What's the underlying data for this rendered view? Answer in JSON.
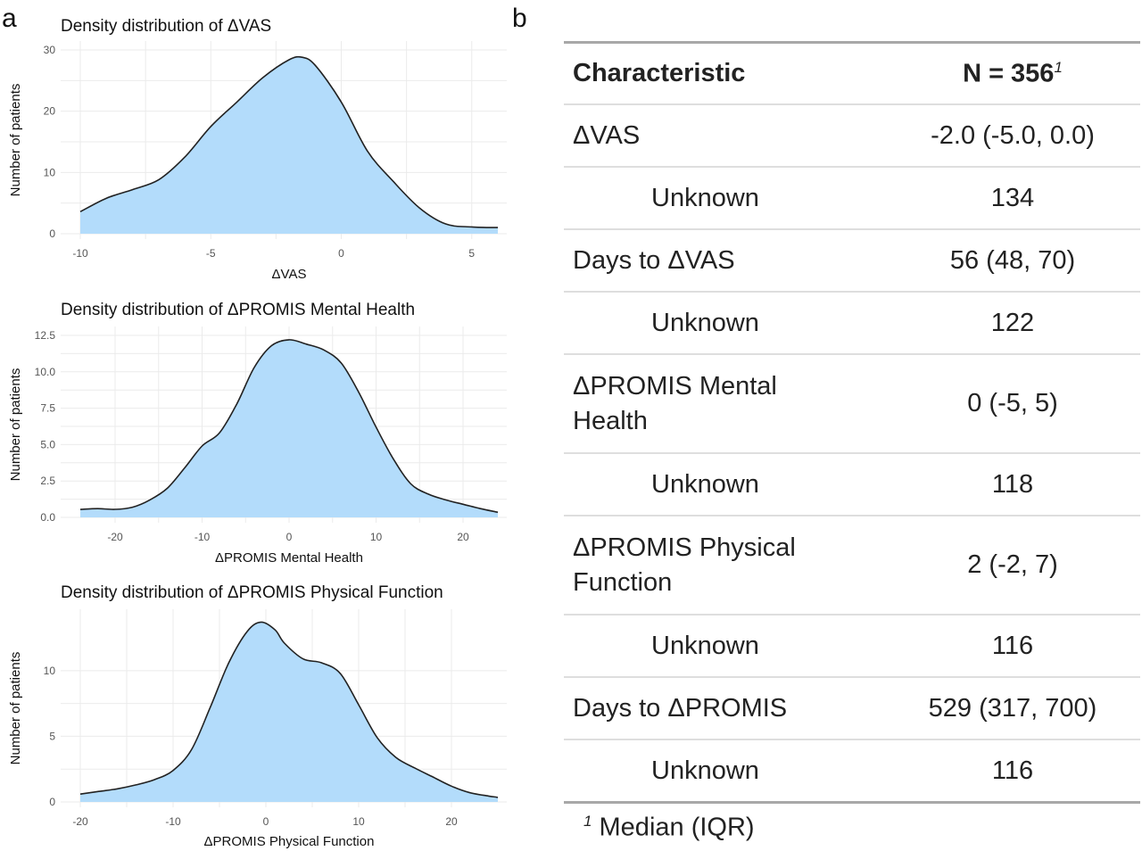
{
  "panels": {
    "a": "a",
    "b": "b"
  },
  "chart_data": [
    {
      "type": "area",
      "title": "Density distribution of ΔVAS",
      "xlabel": "ΔVAS",
      "ylabel": "Number of patients",
      "xlim": [
        -10,
        6
      ],
      "ylim": [
        0,
        30
      ],
      "xticks": [
        -10,
        -5,
        0,
        5
      ],
      "xtick_labels": [
        "-10",
        "-5",
        "0",
        "5"
      ],
      "yticks": [
        0,
        10,
        20,
        30
      ],
      "ytick_labels": [
        "0",
        "10",
        "20",
        "30"
      ],
      "grid": true,
      "x": [
        -10,
        -9,
        -8,
        -7,
        -6,
        -5,
        -4,
        -3,
        -2,
        -1.5,
        -1,
        0,
        1,
        2,
        3,
        4,
        5,
        6
      ],
      "y": [
        3.6,
        5.8,
        7.2,
        8.8,
        12.5,
        17.5,
        21.5,
        25.5,
        28.4,
        28.8,
        27.5,
        21.5,
        13.5,
        8.5,
        4.2,
        1.6,
        1.1,
        1.0
      ],
      "series": [
        {
          "values": [
            3.6,
            5.8,
            7.2,
            8.8,
            12.5,
            17.5,
            21.5,
            25.5,
            28.4,
            28.8,
            27.5,
            21.5,
            13.5,
            8.5,
            4.2,
            1.6,
            1.1,
            1.0
          ]
        }
      ]
    },
    {
      "type": "area",
      "title": "Density distribution of ΔPROMIS Mental Health",
      "xlabel": "ΔPROMIS Mental Health",
      "ylabel": "Number of patients",
      "xlim": [
        -24,
        24
      ],
      "ylim": [
        0,
        12.5
      ],
      "xticks": [
        -20,
        -10,
        0,
        10,
        20
      ],
      "xtick_labels": [
        "-20",
        "-10",
        "0",
        "10",
        "20"
      ],
      "yticks": [
        0,
        2.5,
        5,
        7.5,
        10,
        12.5
      ],
      "ytick_labels": [
        "0.0",
        "2.5",
        "5.0",
        "7.5",
        "10.0",
        "12.5"
      ],
      "grid": true,
      "x": [
        -24,
        -22,
        -20,
        -18,
        -16,
        -14,
        -12,
        -10,
        -8,
        -6,
        -4,
        -2,
        0,
        2,
        4,
        6,
        8,
        10,
        12,
        14,
        16,
        18,
        20,
        22,
        24
      ],
      "y": [
        0.55,
        0.6,
        0.55,
        0.7,
        1.2,
        2.0,
        3.4,
        4.9,
        5.8,
        7.8,
        10.3,
        11.8,
        12.2,
        11.9,
        11.5,
        10.6,
        8.6,
        6.2,
        4.0,
        2.3,
        1.6,
        1.2,
        0.9,
        0.6,
        0.35
      ],
      "series": [
        {
          "values": [
            0.55,
            0.6,
            0.55,
            0.7,
            1.2,
            2.0,
            3.4,
            4.9,
            5.8,
            7.8,
            10.3,
            11.8,
            12.2,
            11.9,
            11.5,
            10.6,
            8.6,
            6.2,
            4.0,
            2.3,
            1.6,
            1.2,
            0.9,
            0.6,
            0.35
          ]
        }
      ]
    },
    {
      "type": "area",
      "title": "Density distribution of ΔPROMIS Physical Function",
      "xlabel": "ΔPROMIS Physical Function",
      "ylabel": "Number of patients",
      "xlim": [
        -20,
        25
      ],
      "ylim": [
        0,
        14
      ],
      "xticks": [
        -20,
        -10,
        0,
        10,
        20
      ],
      "xtick_labels": [
        "-20",
        "-10",
        "0",
        "10",
        "20"
      ],
      "yticks": [
        0,
        5,
        10
      ],
      "ytick_labels": [
        "0",
        "5",
        "10"
      ],
      "grid": true,
      "x": [
        -20,
        -18,
        -16,
        -14,
        -12,
        -10,
        -8,
        -6,
        -4,
        -2,
        -0.5,
        1,
        2,
        4,
        6,
        8,
        10,
        12,
        14,
        16,
        18,
        20,
        22,
        24,
        25
      ],
      "y": [
        0.6,
        0.8,
        1.0,
        1.3,
        1.7,
        2.4,
        4.0,
        7.2,
        10.6,
        13.0,
        13.7,
        13.1,
        12.1,
        10.9,
        10.6,
        9.8,
        7.4,
        4.9,
        3.4,
        2.6,
        1.9,
        1.2,
        0.7,
        0.45,
        0.35
      ],
      "series": [
        {
          "values": [
            0.6,
            0.8,
            1.0,
            1.3,
            1.7,
            2.4,
            4.0,
            7.2,
            10.6,
            13.0,
            13.7,
            13.1,
            12.1,
            10.9,
            10.6,
            9.8,
            7.4,
            4.9,
            3.4,
            2.6,
            1.9,
            1.2,
            0.7,
            0.45,
            0.35
          ]
        }
      ]
    }
  ],
  "table": {
    "header": {
      "characteristic": "Characteristic",
      "n_label": "N = 356",
      "n_sup": "1"
    },
    "rows": [
      {
        "label": "ΔVAS",
        "value": "-2.0 (-5.0, 0.0)"
      },
      {
        "label": "Unknown",
        "value": "134"
      },
      {
        "label": "Days to ΔVAS",
        "value": "56 (48, 70)"
      },
      {
        "label": "Unknown",
        "value": "122"
      },
      {
        "label": "ΔPROMIS Mental Health",
        "value": "0 (-5, 5)"
      },
      {
        "label": "Unknown",
        "value": "118"
      },
      {
        "label": "ΔPROMIS Physical Function",
        "value": "2 (-2, 7)"
      },
      {
        "label": "Unknown",
        "value": "116"
      },
      {
        "label": "Days to ΔPROMIS",
        "value": "529 (317, 700)"
      },
      {
        "label": "Unknown",
        "value": "116"
      }
    ],
    "footnote": {
      "sup": "1",
      "text": " Median (IQR)"
    }
  }
}
